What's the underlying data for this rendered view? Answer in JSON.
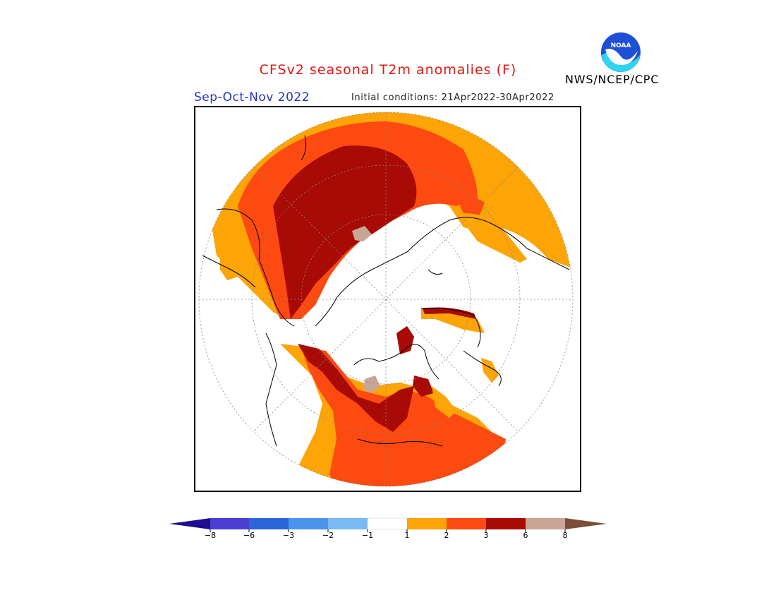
{
  "title": "CFSv2 seasonal T2m anomalies (F)",
  "season": "Sep-Oct-Nov 2022",
  "initial_conditions": "Initial conditions: 21Apr2022-30Apr2022",
  "organization": "NWS/NCEP/CPC",
  "logo": {
    "icon": "noaa-logo",
    "text": "NOAA"
  },
  "colorbar": {
    "labels": [
      "−8",
      "−6",
      "−3",
      "−2",
      "−1",
      "1",
      "2",
      "3",
      "6",
      "8"
    ],
    "colors": {
      "lt_-8": "#1d0f8f",
      "-8_-6": "#4b3ed1",
      "-6_-3": "#2a66d8",
      "-3_-2": "#4a94ec",
      "-2_-1": "#7ab9f2",
      "-1_1": "#ffffff",
      "1_2": "#fda407",
      "2_3": "#fc4a10",
      "3_6": "#a80a06",
      "6_8": "#c9a595",
      "gt_8": "#7a4e3b"
    }
  }
}
